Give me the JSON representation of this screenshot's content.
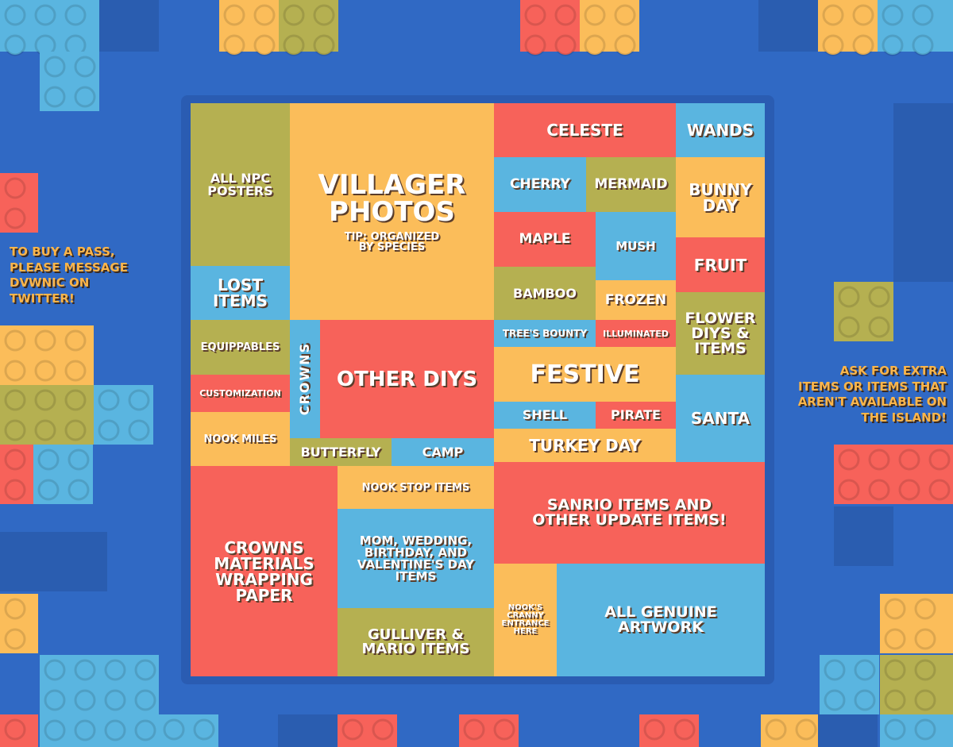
{
  "notes": {
    "left": "TO BUY A PASS,\nPLEASE MESSAGE\nDVWNIC ON\nTWITTER!",
    "right": "ASK FOR EXTRA\nITEMS OR ITEMS THAT\nAREN'T AVAILABLE ON\nTHE ISLAND!"
  },
  "tiles": [
    {
      "label": "ALL NPC\nPOSTERS"
    },
    {
      "label": "VILLAGER\nPHOTOS",
      "tip": "TIP: ORGANIZED\nBY SPECIES"
    },
    {
      "label": "CELESTE"
    },
    {
      "label": "WANDS"
    },
    {
      "label": "CHERRY"
    },
    {
      "label": "MERMAID"
    },
    {
      "label": "BUNNY\nDAY"
    },
    {
      "label": "MAPLE"
    },
    {
      "label": "MUSH"
    },
    {
      "label": "FRUIT"
    },
    {
      "label": "BAMBOO"
    },
    {
      "label": "FROZEN"
    },
    {
      "label": "FLOWER\nDIYS &\nITEMS"
    },
    {
      "label": "LOST\nITEMS"
    },
    {
      "label": "TREE'S BOUNTY"
    },
    {
      "label": "ILLUMINATED"
    },
    {
      "label": "EQUIPPABLES"
    },
    {
      "label": "CROWNS"
    },
    {
      "label": "OTHER DIYS"
    },
    {
      "label": "FESTIVE"
    },
    {
      "label": "SANTA"
    },
    {
      "label": "CUSTOMIZATION"
    },
    {
      "label": "SHELL"
    },
    {
      "label": "PIRATE"
    },
    {
      "label": "NOOK MILES"
    },
    {
      "label": "BUTTERFLY"
    },
    {
      "label": "CAMP"
    },
    {
      "label": "TURKEY DAY"
    },
    {
      "label": "CROWNS\nMATERIALS\nWRAPPING\nPAPER"
    },
    {
      "label": "NOOK STOP ITEMS"
    },
    {
      "label": "SANRIO ITEMS AND\nOTHER UPDATE ITEMS!"
    },
    {
      "label": "MOM, WEDDING,\nBIRTHDAY, AND\nVALENTINE'S DAY\nITEMS"
    },
    {
      "label": "GULLIVER &\nMARIO ITEMS"
    },
    {
      "label": "NOOK'S\nCRANNY\nENTRANCE\nHERE"
    },
    {
      "label": "ALL GENUINE\nARTWORK"
    }
  ]
}
